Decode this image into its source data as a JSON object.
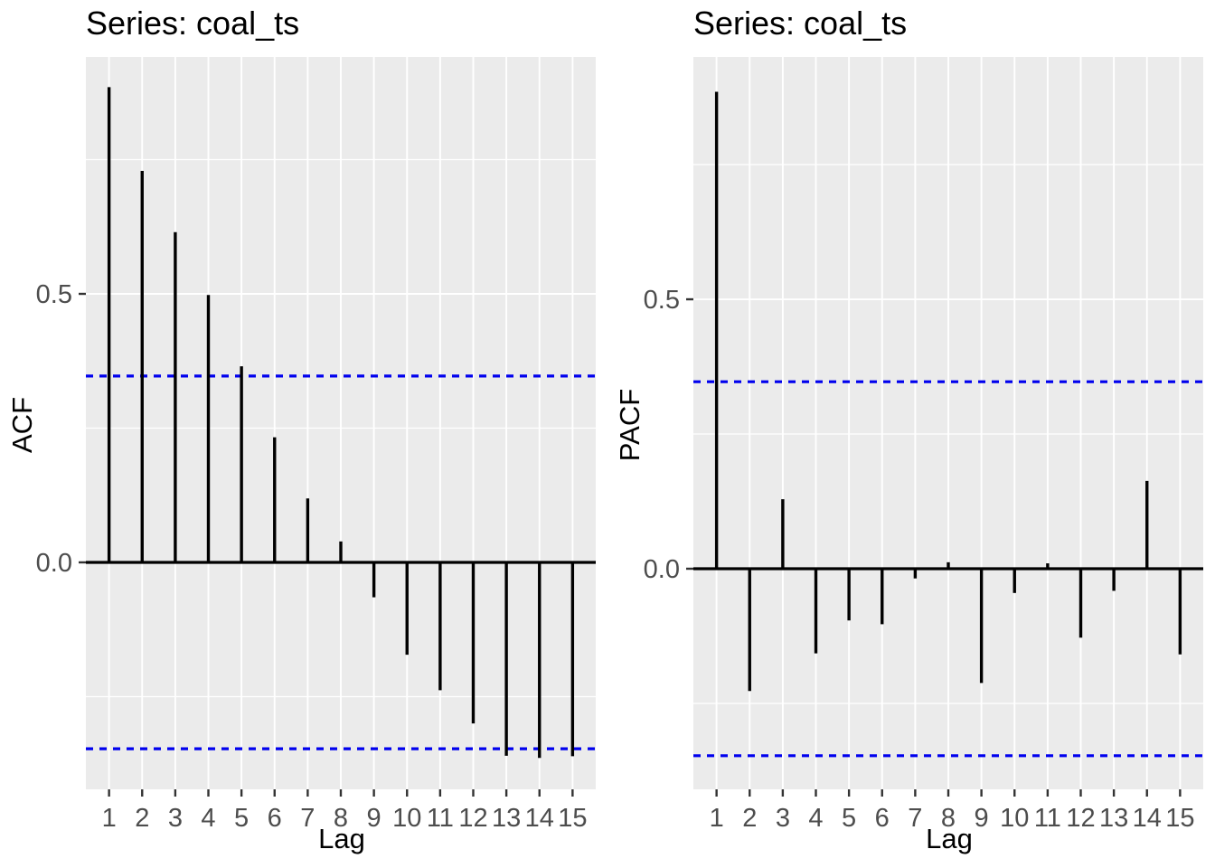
{
  "style": {
    "figure_background": "#FFFFFF",
    "panel_background": "#EBEBEB",
    "grid_color": "#FFFFFF",
    "bar_color": "#000000",
    "zero_line_color": "#000000",
    "conf_line_color": "#0000EE",
    "tick_mark_color": "#333333",
    "tick_label_color": "#4D4D4D",
    "title_color": "#000000"
  },
  "chart_data": [
    {
      "type": "bar",
      "title": "Series: coal_ts",
      "xlabel": "Lag",
      "ylabel": "ACF",
      "x": [
        1,
        2,
        3,
        4,
        5,
        6,
        7,
        8,
        9,
        10,
        11,
        12,
        13,
        14,
        15
      ],
      "x_tick_labels": [
        "1",
        "2",
        "3",
        "4",
        "5",
        "6",
        "7",
        "8",
        "9",
        "10",
        "11",
        "12",
        "13",
        "14",
        "15"
      ],
      "values": [
        0.885,
        0.729,
        0.615,
        0.498,
        0.365,
        0.233,
        0.119,
        0.039,
        -0.065,
        -0.172,
        -0.238,
        -0.3,
        -0.36,
        -0.364,
        -0.361
      ],
      "significance_bounds": {
        "upper": 0.347,
        "lower": -0.347
      },
      "y_ticks": [
        {
          "label": "0.5",
          "value": 0.5
        },
        {
          "label": "0.0",
          "value": 0.0
        }
      ],
      "xlim": [
        0.3,
        15.7
      ],
      "ylim": [
        -0.4226,
        0.9411
      ],
      "grid": {
        "h_major": [
          0.0,
          0.5
        ],
        "h_minor": [
          -0.25,
          0.25,
          0.75
        ]
      },
      "legend": "none"
    },
    {
      "type": "bar",
      "title": "Series: coal_ts",
      "xlabel": "Lag",
      "ylabel": "PACF",
      "x": [
        1,
        2,
        3,
        4,
        5,
        6,
        7,
        8,
        9,
        10,
        11,
        12,
        13,
        14,
        15
      ],
      "x_tick_labels": [
        "1",
        "2",
        "3",
        "4",
        "5",
        "6",
        "7",
        "8",
        "9",
        "10",
        "11",
        "12",
        "13",
        "14",
        "15"
      ],
      "values": [
        0.885,
        -0.227,
        0.129,
        -0.157,
        -0.096,
        -0.103,
        -0.018,
        0.012,
        -0.212,
        -0.045,
        0.01,
        -0.128,
        -0.041,
        0.163,
        -0.159
      ],
      "significance_bounds": {
        "upper": 0.347,
        "lower": -0.347
      },
      "y_ticks": [
        {
          "label": "0.5",
          "value": 0.5
        },
        {
          "label": "0.0",
          "value": 0.0
        }
      ],
      "xlim": [
        0.3,
        15.7
      ],
      "ylim": [
        -0.4094,
        0.9497
      ],
      "grid": {
        "h_major": [
          0.0,
          0.5
        ],
        "h_minor": [
          -0.25,
          0.25,
          0.75
        ]
      },
      "legend": "none"
    }
  ]
}
